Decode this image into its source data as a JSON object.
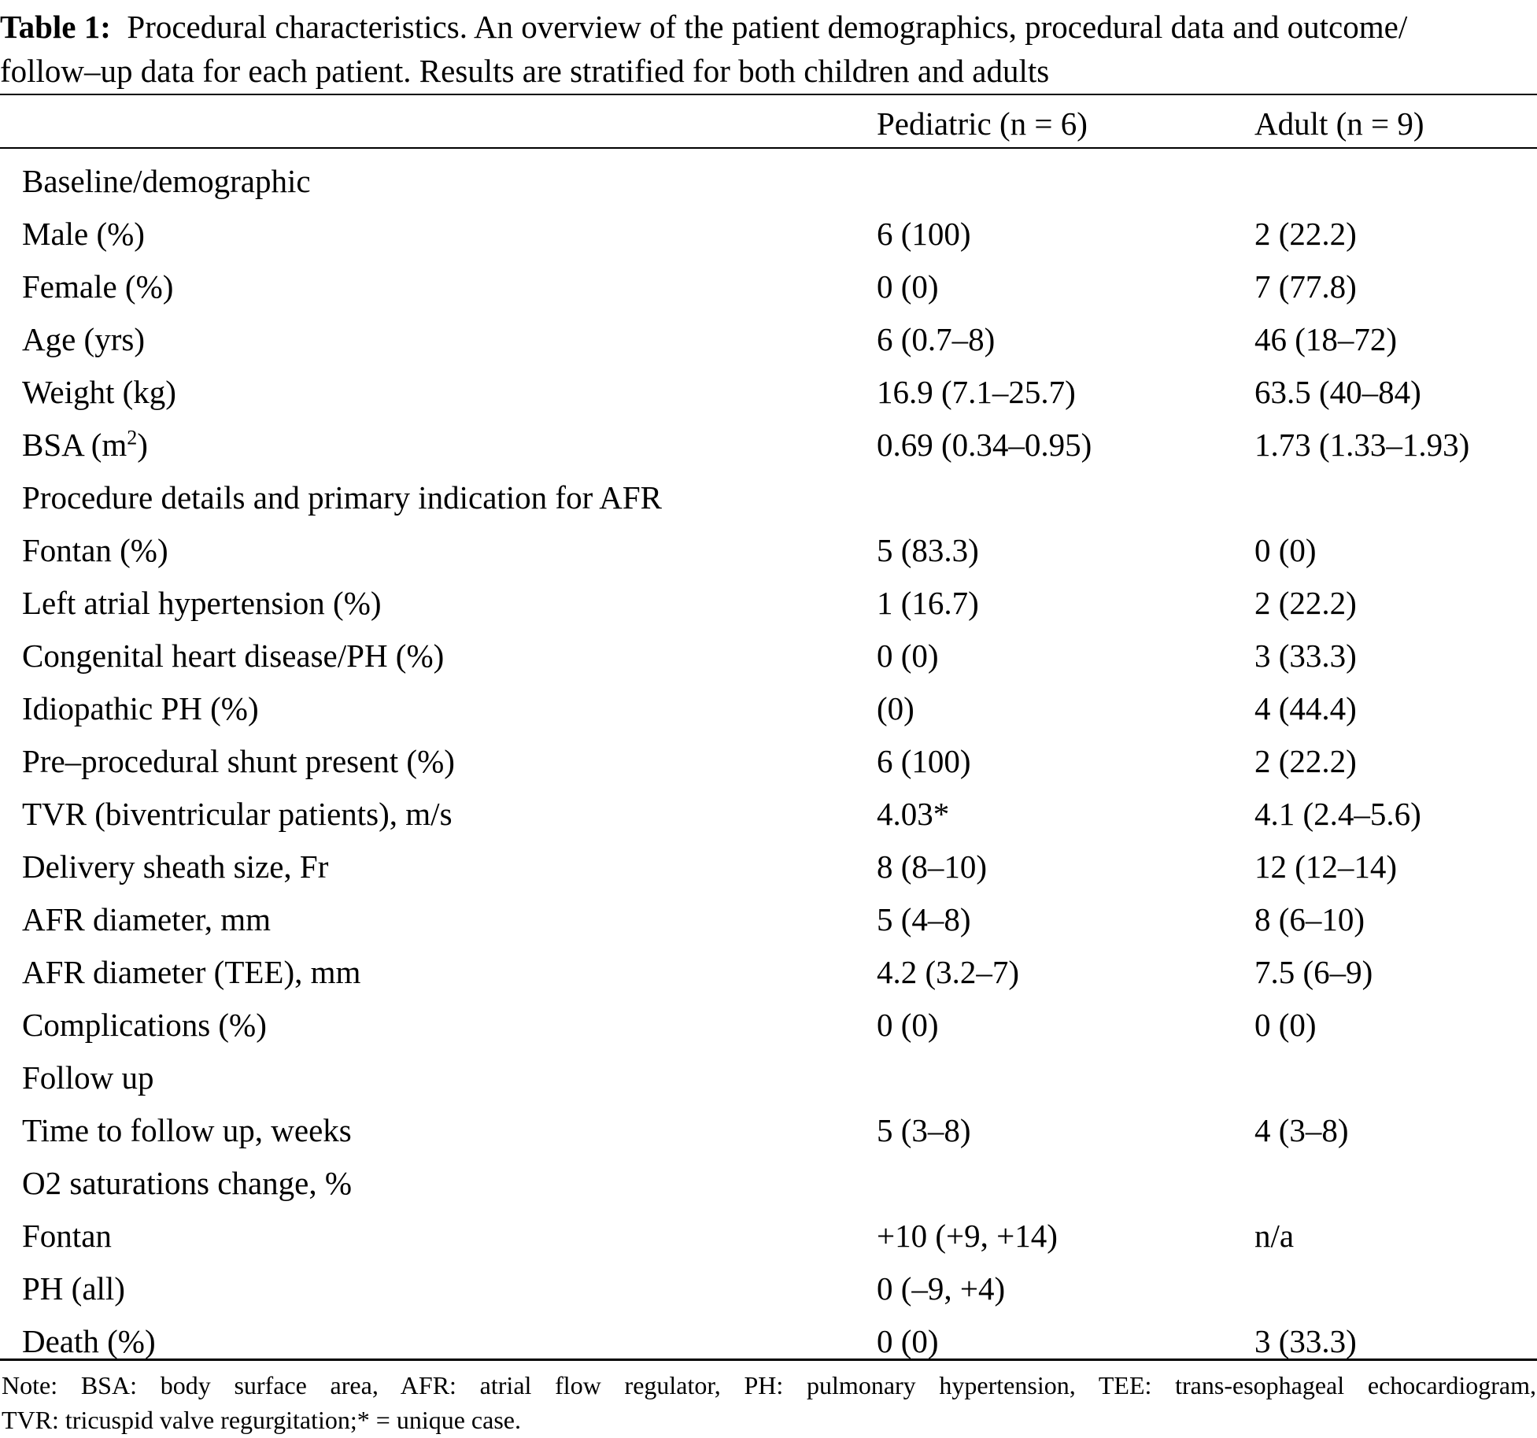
{
  "caption": {
    "label": "Table 1:",
    "line1": "Procedural characteristics. An overview of the patient demographics, procedural data and outcome/",
    "line2": "follow–up data for each patient. Results are stratified for both children and adults"
  },
  "columns": {
    "pediatric": "Pediatric (n = 6)",
    "adult": "Adult (n = 9)"
  },
  "rows": [
    {
      "label": "Baseline/demographic",
      "pediatric": "",
      "adult": ""
    },
    {
      "label": "Male (%)",
      "pediatric": "6 (100)",
      "adult": "2 (22.2)"
    },
    {
      "label": "Female (%)",
      "pediatric": "0 (0)",
      "adult": "7 (77.8)"
    },
    {
      "label": "Age (yrs)",
      "pediatric": "6 (0.7–8)",
      "adult": "46 (18–72)"
    },
    {
      "label": "Weight (kg)",
      "pediatric": "16.9 (7.1–25.7)",
      "adult": "63.5 (40–84)"
    },
    {
      "label": "BSA (m",
      "label_sup": "2",
      "label_after": ")",
      "pediatric": "0.69 (0.34–0.95)",
      "adult": "1.73 (1.33–1.93)"
    },
    {
      "label": "Procedure details and primary indication for AFR",
      "pediatric": "",
      "adult": ""
    },
    {
      "label": "Fontan (%)",
      "pediatric": "5 (83.3)",
      "adult": "0 (0)"
    },
    {
      "label": "Left atrial hypertension (%)",
      "pediatric": "1 (16.7)",
      "adult": "2 (22.2)"
    },
    {
      "label": "Congenital heart disease/PH (%)",
      "pediatric": "0 (0)",
      "adult": "3 (33.3)"
    },
    {
      "label": "Idiopathic PH (%)",
      "pediatric": "(0)",
      "adult": "4 (44.4)"
    },
    {
      "label": "Pre–procedural shunt present (%)",
      "pediatric": "6 (100)",
      "adult": "2 (22.2)"
    },
    {
      "label": "TVR (biventricular patients), m/s",
      "pediatric": "4.03*",
      "adult": "4.1 (2.4–5.6)"
    },
    {
      "label": "Delivery sheath size, Fr",
      "pediatric": "8 (8–10)",
      "adult": "12 (12–14)"
    },
    {
      "label": "AFR diameter, mm",
      "pediatric": "5 (4–8)",
      "adult": "8 (6–10)"
    },
    {
      "label": "AFR diameter (TEE), mm",
      "pediatric": "4.2 (3.2–7)",
      "adult": "7.5 (6–9)"
    },
    {
      "label": "Complications (%)",
      "pediatric": "0 (0)",
      "adult": "0 (0)"
    },
    {
      "label": "Follow up",
      "pediatric": "",
      "adult": ""
    },
    {
      "label": "Time to follow up, weeks",
      "pediatric": "5 (3–8)",
      "adult": "4 (3–8)"
    },
    {
      "label": "O2 saturations change, %",
      "pediatric": "",
      "adult": ""
    },
    {
      "label": "Fontan",
      "pediatric": "+10 (+9, +14)",
      "adult": "n/a"
    },
    {
      "label": "PH (all)",
      "pediatric": "0 (–9, +4)",
      "adult": ""
    },
    {
      "label": "Death (%)",
      "pediatric": "0 (0)",
      "adult": "3 (33.3)"
    }
  ],
  "note": {
    "line1": "Note: BSA: body surface area, AFR: atrial flow regulator, PH: pulmonary hypertension, TEE: trans-esophageal echocardiogram,",
    "line2": "TVR: tricuspid valve regurgitation;* = unique case."
  }
}
